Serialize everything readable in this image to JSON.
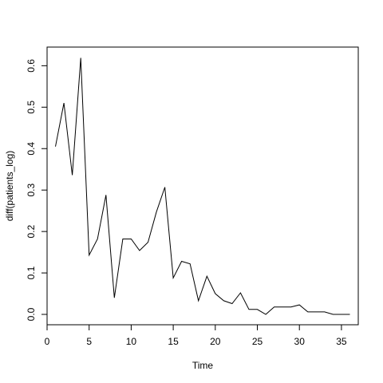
{
  "chart_data": {
    "type": "line",
    "title": "",
    "xlabel": "Time",
    "ylabel": "diff(patients_log)",
    "xlim": [
      0,
      37
    ],
    "ylim": [
      -0.025,
      0.645
    ],
    "xticks": [
      0,
      5,
      10,
      15,
      20,
      25,
      30,
      35
    ],
    "xtick_labels": [
      "0",
      "5",
      "10",
      "15",
      "20",
      "25",
      "30",
      "35"
    ],
    "yticks": [
      0.0,
      0.1,
      0.2,
      0.3,
      0.4,
      0.5,
      0.6
    ],
    "ytick_labels": [
      "0.0",
      "0.1",
      "0.2",
      "0.3",
      "0.4",
      "0.5",
      "0.6"
    ],
    "grid": false,
    "legend": "none",
    "line_color": "#000000",
    "series": [
      {
        "x": [
          1,
          2,
          3,
          4,
          5,
          6,
          7,
          8,
          9,
          10,
          11,
          12,
          13,
          14,
          15,
          16,
          17,
          18,
          19,
          20,
          21,
          22,
          23,
          24,
          25,
          26,
          27,
          28,
          29,
          30,
          31,
          32,
          33,
          34,
          35,
          36
        ],
        "values": [
          0.405,
          0.51,
          0.336,
          0.619,
          0.143,
          0.182,
          0.288,
          0.04,
          0.182,
          0.182,
          0.154,
          0.174,
          0.247,
          0.307,
          0.088,
          0.128,
          0.122,
          0.033,
          0.092,
          0.05,
          0.033,
          0.026,
          0.052,
          0.012,
          0.012,
          0.0,
          0.018,
          0.018,
          0.018,
          0.023,
          0.006,
          0.006,
          0.006,
          0.0,
          0.0,
          0.0
        ]
      }
    ]
  }
}
